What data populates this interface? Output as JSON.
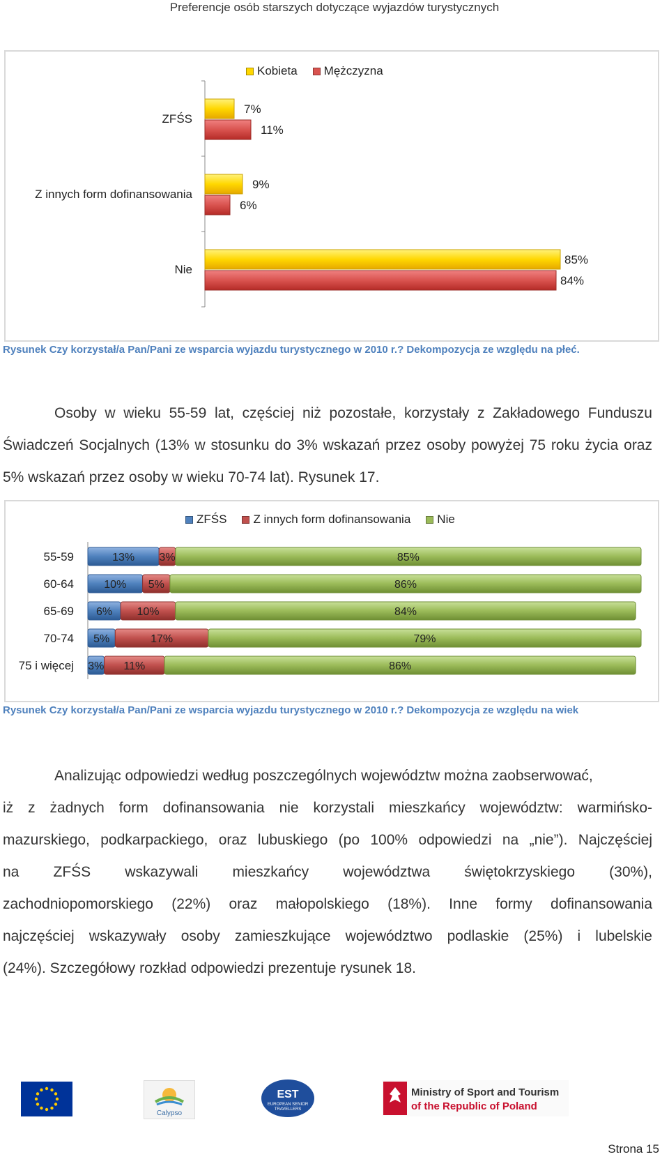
{
  "header": {
    "title": "Preferencje osób starszych dotyczące wyjazdów turystycznych"
  },
  "figure1": {
    "caption": "Rysunek  Czy korzystał/a Pan/Pani ze wsparcia wyjazdu turystycznego w 2010 r.? Dekompozycja ze względu na płeć.",
    "legend": [
      {
        "label": "Kobieta",
        "color": "#ffd700"
      },
      {
        "label": "Mężczyzna",
        "color": "#d9534f"
      }
    ]
  },
  "paragraph1": "Osoby w wieku 55-59 lat, częściej niż pozostałe, korzystały z Zakładowego Funduszu Świadczeń Socjalnych (13% w stosunku do 3% wskazań przez osoby powyżej 75 roku życia oraz 5% wskazań przez osoby w wieku 70-74 lat). Rysunek 17.",
  "figure2": {
    "caption": "Rysunek  Czy korzystał/a Pan/Pani ze wsparcia wyjazdu turystycznego w 2010 r.? Dekompozycja ze względu na wiek",
    "legend": [
      {
        "label": "ZFŚS",
        "color": "#4f81bd"
      },
      {
        "label": "Z innych form dofinansowania",
        "color": "#c0504d"
      },
      {
        "label": "Nie",
        "color": "#9bbb59"
      }
    ]
  },
  "paragraph2": {
    "line1": "Analizując odpowiedzi według poszczególnych województw można zaobserwować,",
    "line2": "iż z żadnych form dofinansowania nie korzystali mieszkańcy województw: warmińsko-",
    "line3": "mazurskiego, podkarpackiego, oraz lubuskiego (po 100% odpowiedzi na „nie”). Najczęściej",
    "line4": "na ZFŚS wskazywali mieszkańcy województwa świętokrzyskiego (30%),",
    "line5": "zachodniopomorskiego (22%) oraz małopolskiego (18%). Inne formy dofinansowania",
    "line6": "najczęściej wskazywały osoby zamieszkujące województwo podlaskie (25%) i lubelskie",
    "line7": "(24%). Szczegółowy rozkład odpowiedzi prezentuje rysunek 18."
  },
  "footer": {
    "logos": {
      "eu_flag": "eu-flag",
      "calypso": "Calypso",
      "est_line1": "EST",
      "est_line2": "EUROPEAN SENIOR",
      "est_line3": "TRAVELLERS",
      "ministry_line1": "Ministry of Sport and Tourism",
      "ministry_line2": "of the Republic of Poland"
    },
    "page_number": "Strona 15"
  },
  "chart_data": [
    {
      "type": "bar",
      "orientation": "horizontal",
      "categories": [
        "ZFŚS",
        "Z innych form dofinansowania",
        "Nie"
      ],
      "series": [
        {
          "name": "Kobieta",
          "values": [
            7,
            9,
            85
          ],
          "labels": [
            "7%",
            "9%",
            "85%"
          ],
          "color": "#ffd700"
        },
        {
          "name": "Mężczyzna",
          "values": [
            11,
            6,
            84
          ],
          "labels": [
            "11%",
            "6%",
            "84%"
          ],
          "color": "#d9534f"
        }
      ],
      "legend": "top-center",
      "grid": false
    },
    {
      "type": "bar",
      "orientation": "horizontal",
      "stacked": true,
      "categories": [
        "55-59",
        "60-64",
        "65-69",
        "70-74",
        "75 i więcej"
      ],
      "series": [
        {
          "name": "ZFŚS",
          "values": [
            13,
            10,
            6,
            5,
            3
          ],
          "labels": [
            "13%",
            "10%",
            "6%",
            "5%",
            "3%"
          ],
          "color": "#4f81bd"
        },
        {
          "name": "Z innych form dofinansowania",
          "values": [
            3,
            5,
            10,
            17,
            11
          ],
          "labels": [
            "3%",
            "5%",
            "10%",
            "17%",
            "11%"
          ],
          "color": "#c0504d"
        },
        {
          "name": "Nie",
          "values": [
            85,
            86,
            84,
            79,
            86
          ],
          "labels": [
            "85%",
            "86%",
            "84%",
            "79%",
            "86%"
          ],
          "color": "#9bbb59"
        }
      ],
      "legend": "top-center",
      "grid": false
    }
  ]
}
